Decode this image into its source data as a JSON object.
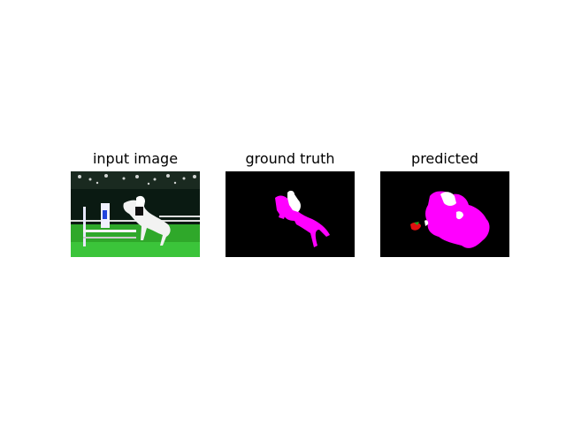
{
  "panels": [
    {
      "title": "input image"
    },
    {
      "title": "ground truth"
    },
    {
      "title": "predicted"
    }
  ],
  "colors": {
    "background": "#ffffff",
    "mask_background": "#000000",
    "horse_class": "#ff00ff",
    "person_class": "#ffffff",
    "other_class_red": "#e01010",
    "other_class_green": "#20a020"
  }
}
